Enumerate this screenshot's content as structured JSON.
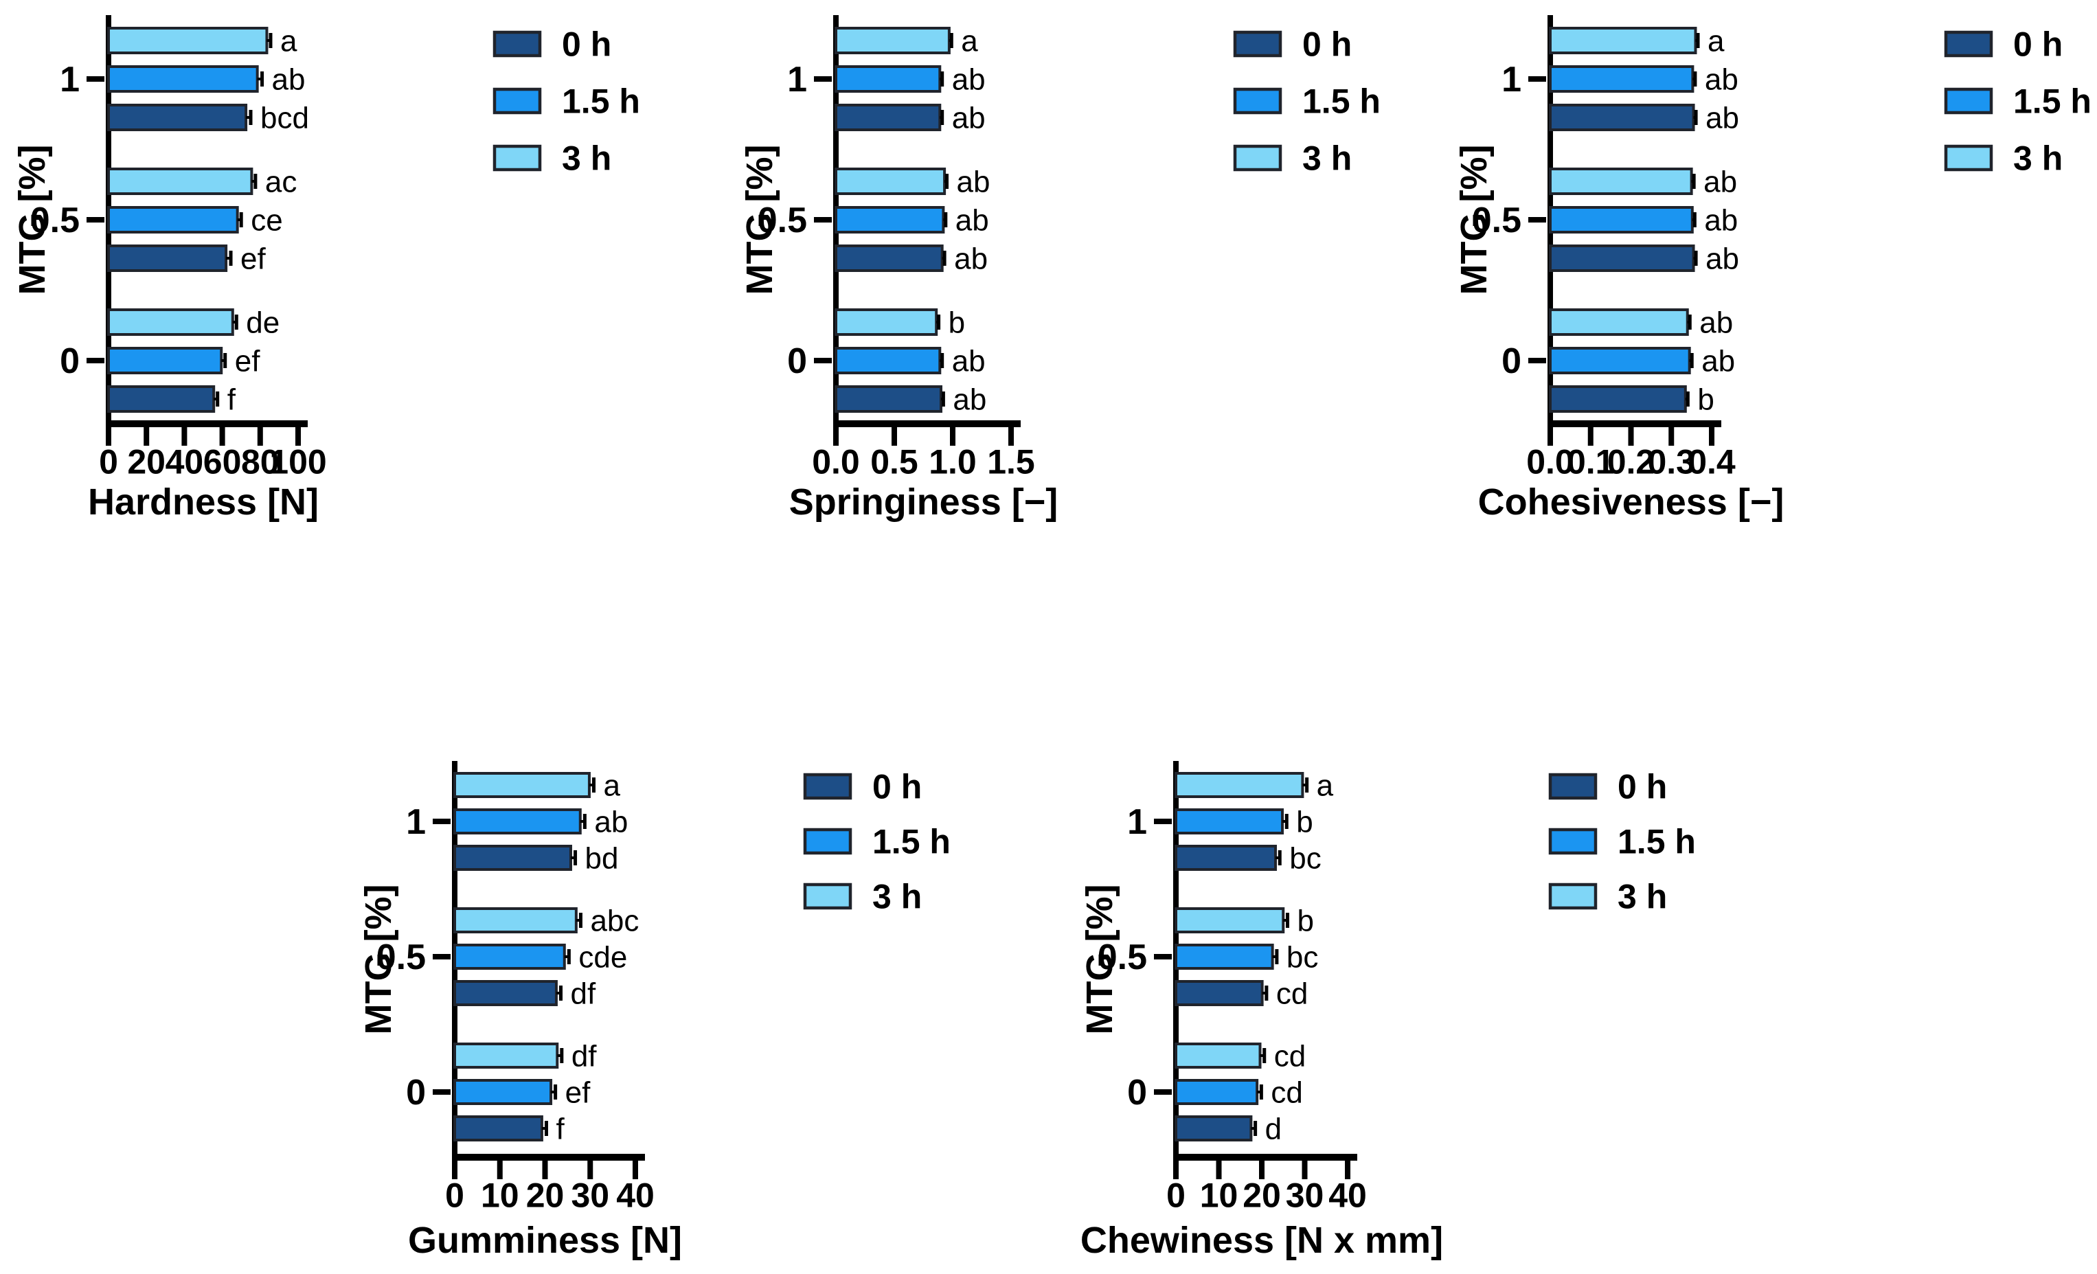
{
  "figure": {
    "background": "#ffffff",
    "description": "Texture profile analysis bar charts",
    "axis_color": "#000000",
    "bar_border_color": "#20242c"
  },
  "legend": {
    "items": [
      {
        "label": "0 h",
        "color": "#1d4e87"
      },
      {
        "label": "1.5 h",
        "color": "#1b95f1"
      },
      {
        "label": "3 h",
        "color": "#7fd6f7"
      }
    ]
  },
  "chart_data": [
    {
      "id": "hardness",
      "type": "bar",
      "orientation": "horizontal",
      "title": "",
      "xlabel": "Hardness [N]",
      "ylabel": "MTG [%]",
      "xlim": [
        0,
        100
      ],
      "xticks": [
        0,
        20,
        40,
        60,
        80,
        100
      ],
      "tick_decimals": 0,
      "grid": false,
      "legend_position": "right",
      "categories": [
        "0",
        "0.5",
        "1"
      ],
      "series": [
        {
          "name": "0 h",
          "values": [
            55.5,
            62.0,
            72.5
          ],
          "errors": [
            2.0,
            2.5,
            2.5
          ],
          "letters": [
            "f",
            "ef",
            "bcd"
          ]
        },
        {
          "name": "1.5 h",
          "values": [
            59.5,
            68.0,
            78.5
          ],
          "errors": [
            2.0,
            2.0,
            2.5
          ],
          "letters": [
            "ef",
            "ce",
            "ab"
          ]
        },
        {
          "name": "3 h",
          "values": [
            65.5,
            75.5,
            83.5
          ],
          "errors": [
            2.0,
            2.0,
            2.0
          ],
          "letters": [
            "de",
            "ac",
            "a"
          ]
        }
      ]
    },
    {
      "id": "springiness",
      "type": "bar",
      "orientation": "horizontal",
      "title": "",
      "xlabel": "Springiness [−]",
      "ylabel": "MTG [%]",
      "xlim": [
        0,
        1.5
      ],
      "xticks": [
        0,
        0.5,
        1.0,
        1.5
      ],
      "tick_decimals": 1,
      "grid": false,
      "legend_position": "right",
      "categories": [
        "0",
        "0.5",
        "1"
      ],
      "series": [
        {
          "name": "0 h",
          "values": [
            0.9,
            0.91,
            0.89
          ],
          "errors": [
            0.02,
            0.02,
            0.02
          ],
          "letters": [
            "ab",
            "ab",
            "ab"
          ]
        },
        {
          "name": "1.5 h",
          "values": [
            0.89,
            0.92,
            0.89
          ],
          "errors": [
            0.02,
            0.02,
            0.02
          ],
          "letters": [
            "ab",
            "ab",
            "ab"
          ]
        },
        {
          "name": "3 h",
          "values": [
            0.86,
            0.93,
            0.97
          ],
          "errors": [
            0.02,
            0.02,
            0.02
          ],
          "letters": [
            "b",
            "ab",
            "a"
          ]
        }
      ]
    },
    {
      "id": "cohesiveness",
      "type": "bar",
      "orientation": "horizontal",
      "title": "",
      "xlabel": "Cohesiveness [−]",
      "ylabel": "MTG [%]",
      "xlim": [
        0,
        0.4
      ],
      "xticks": [
        0,
        0.1,
        0.2,
        0.3,
        0.4
      ],
      "tick_decimals": 1,
      "grid": false,
      "legend_position": "right",
      "categories": [
        "0",
        "0.5",
        "1"
      ],
      "series": [
        {
          "name": "0 h",
          "values": [
            0.335,
            0.355,
            0.355
          ],
          "errors": [
            0.006,
            0.006,
            0.006
          ],
          "letters": [
            "b",
            "ab",
            "ab"
          ]
        },
        {
          "name": "1.5 h",
          "values": [
            0.345,
            0.352,
            0.353
          ],
          "errors": [
            0.006,
            0.006,
            0.006
          ],
          "letters": [
            "ab",
            "ab",
            "ab"
          ]
        },
        {
          "name": "3 h",
          "values": [
            0.34,
            0.35,
            0.36
          ],
          "errors": [
            0.006,
            0.006,
            0.006
          ],
          "letters": [
            "ab",
            "ab",
            "a"
          ]
        }
      ]
    },
    {
      "id": "gumminess",
      "type": "bar",
      "orientation": "horizontal",
      "title": "",
      "xlabel": "Gumminess [N]",
      "ylabel": "MTG [%]",
      "xlim": [
        0,
        40
      ],
      "xticks": [
        0,
        10,
        20,
        30,
        40
      ],
      "tick_decimals": 0,
      "grid": false,
      "legend_position": "right",
      "categories": [
        "0",
        "0.5",
        "1"
      ],
      "series": [
        {
          "name": "0 h",
          "values": [
            19.3,
            22.5,
            25.7
          ],
          "errors": [
            1.0,
            1.0,
            1.0
          ],
          "letters": [
            "f",
            "df",
            "bd"
          ]
        },
        {
          "name": "1.5 h",
          "values": [
            21.3,
            24.3,
            27.8
          ],
          "errors": [
            1.0,
            1.0,
            1.0
          ],
          "letters": [
            "ef",
            "cde",
            "ab"
          ]
        },
        {
          "name": "3 h",
          "values": [
            22.7,
            26.9,
            29.8
          ],
          "errors": [
            1.0,
            1.0,
            1.0
          ],
          "letters": [
            "df",
            "abc",
            "a"
          ]
        }
      ]
    },
    {
      "id": "chewiness",
      "type": "bar",
      "orientation": "horizontal",
      "title": "",
      "xlabel": "Chewiness [N x mm]",
      "ylabel": "MTG [%]",
      "xlim": [
        0,
        40
      ],
      "xticks": [
        0,
        10,
        20,
        30,
        40
      ],
      "tick_decimals": 0,
      "grid": false,
      "legend_position": "right",
      "categories": [
        "0",
        "0.5",
        "1"
      ],
      "series": [
        {
          "name": "0 h",
          "values": [
            17.5,
            20.1,
            23.2
          ],
          "errors": [
            1.0,
            1.0,
            1.0
          ],
          "letters": [
            "d",
            "cd",
            "bc"
          ]
        },
        {
          "name": "1.5 h",
          "values": [
            18.9,
            22.5,
            24.8
          ],
          "errors": [
            1.0,
            1.0,
            1.0
          ],
          "letters": [
            "cd",
            "bc",
            "b"
          ]
        },
        {
          "name": "3 h",
          "values": [
            19.6,
            25.0,
            29.5
          ],
          "errors": [
            1.0,
            1.0,
            1.0
          ],
          "letters": [
            "cd",
            "b",
            "a"
          ]
        }
      ]
    }
  ]
}
